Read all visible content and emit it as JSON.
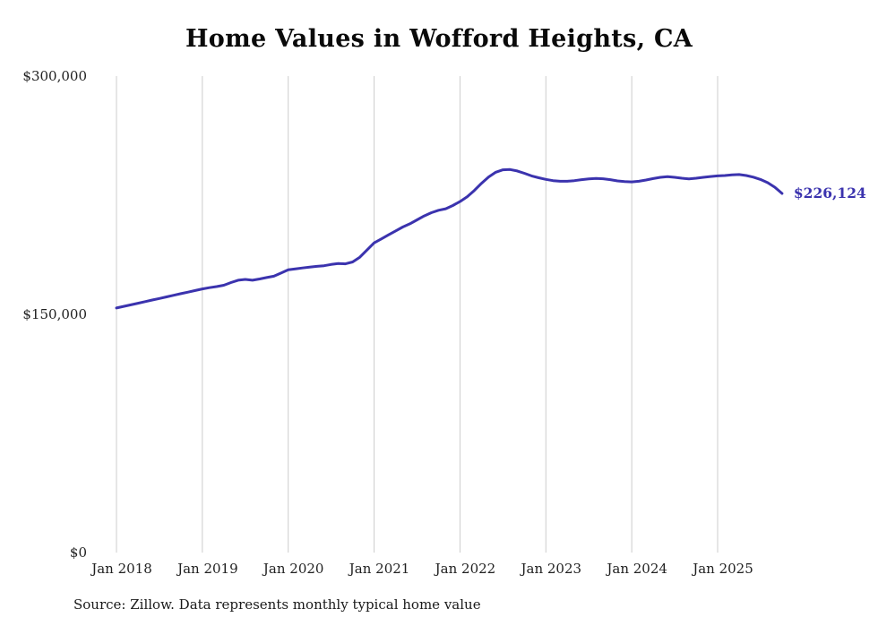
{
  "title": "Home Values in Wofford Heights, CA",
  "source_note": "Source: Zillow. Data represents monthly typical home value",
  "chart_data": {
    "type": "line",
    "title": "Home Values in Wofford Heights, CA",
    "series_name": "Monthly typical home value",
    "unit": "USD",
    "grid": "vertical",
    "legend": "none",
    "line_color": "#3b33ae",
    "grid_color": "#cccccc",
    "ylim": [
      0,
      300000
    ],
    "y_ticks": [
      {
        "value": 0,
        "label": "$0"
      },
      {
        "value": 150000,
        "label": "$150,000"
      },
      {
        "value": 300000,
        "label": "$300,000"
      }
    ],
    "x_tick_labels": [
      "Jan 2018",
      "Jan 2019",
      "Jan 2020",
      "Jan 2021",
      "Jan 2022",
      "Jan 2023",
      "Jan 2024",
      "Jan 2025"
    ],
    "end_label": "$226,124",
    "end_value": 226124,
    "x": [
      "2018-01",
      "2018-02",
      "2018-03",
      "2018-04",
      "2018-05",
      "2018-06",
      "2018-07",
      "2018-08",
      "2018-09",
      "2018-10",
      "2018-11",
      "2018-12",
      "2019-01",
      "2019-02",
      "2019-03",
      "2019-04",
      "2019-05",
      "2019-06",
      "2019-07",
      "2019-08",
      "2019-09",
      "2019-10",
      "2019-11",
      "2019-12",
      "2020-01",
      "2020-02",
      "2020-03",
      "2020-04",
      "2020-05",
      "2020-06",
      "2020-07",
      "2020-08",
      "2020-09",
      "2020-10",
      "2020-11",
      "2020-12",
      "2021-01",
      "2021-02",
      "2021-03",
      "2021-04",
      "2021-05",
      "2021-06",
      "2021-07",
      "2021-08",
      "2021-09",
      "2021-10",
      "2021-11",
      "2021-12",
      "2022-01",
      "2022-02",
      "2022-03",
      "2022-04",
      "2022-05",
      "2022-06",
      "2022-07",
      "2022-08",
      "2022-09",
      "2022-10",
      "2022-11",
      "2022-12",
      "2023-01",
      "2023-02",
      "2023-03",
      "2023-04",
      "2023-05",
      "2023-06",
      "2023-07",
      "2023-08",
      "2023-09",
      "2023-10",
      "2023-11",
      "2023-12",
      "2024-01",
      "2024-02",
      "2024-03",
      "2024-04",
      "2024-05",
      "2024-06",
      "2024-07",
      "2024-08",
      "2024-09",
      "2024-10",
      "2024-11",
      "2024-12",
      "2025-01",
      "2025-02",
      "2025-03",
      "2025-04",
      "2025-05",
      "2025-06",
      "2025-07",
      "2025-08",
      "2025-09",
      "2025-10"
    ],
    "values": [
      154000,
      155000,
      156000,
      157000,
      158000,
      159000,
      160000,
      161000,
      162000,
      163000,
      164000,
      165000,
      166000,
      166800,
      167500,
      168300,
      170000,
      171500,
      172000,
      171500,
      172300,
      173200,
      174000,
      176000,
      178000,
      178600,
      179200,
      179800,
      180200,
      180600,
      181400,
      182000,
      181800,
      183000,
      186000,
      190500,
      195000,
      197500,
      200000,
      202500,
      205000,
      207000,
      209500,
      212000,
      214000,
      215500,
      216500,
      218500,
      221000,
      224000,
      228000,
      232500,
      236500,
      239500,
      241000,
      241200,
      240300,
      238800,
      237200,
      236000,
      235000,
      234200,
      233800,
      233800,
      234200,
      234800,
      235300,
      235600,
      235400,
      234800,
      234000,
      233600,
      233400,
      233800,
      234600,
      235500,
      236300,
      236700,
      236300,
      235700,
      235300,
      235700,
      236300,
      236800,
      237200,
      237400,
      237800,
      238000,
      237400,
      236400,
      234900,
      232900,
      230000,
      226124
    ]
  }
}
